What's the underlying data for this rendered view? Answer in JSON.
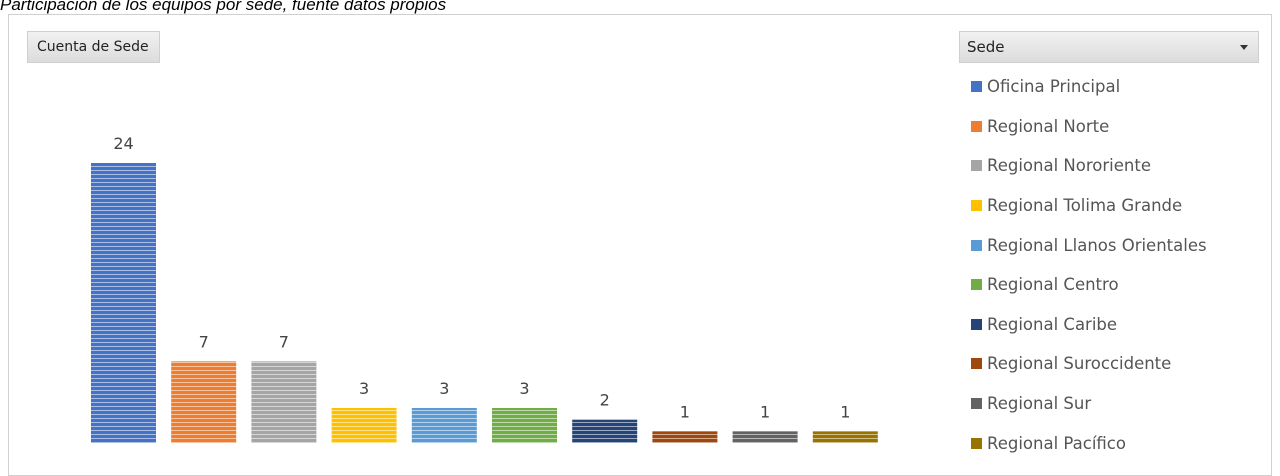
{
  "caption": "Participación de los equipos por sede, fuente datos propios",
  "pivot": {
    "value_field": "Cuenta de Sede",
    "legend_field": "Sede"
  },
  "chart_data": {
    "type": "bar",
    "title": "",
    "xlabel": "",
    "ylabel": "",
    "ylim": [
      0,
      24
    ],
    "grid": false,
    "legend_position": "right",
    "data_labels": true,
    "series": [
      {
        "name": "Oficina Principal",
        "value": 24,
        "color": "#4472c4"
      },
      {
        "name": "Regional Norte",
        "value": 7,
        "color": "#ed7d31"
      },
      {
        "name": "Regional Nororiente",
        "value": 7,
        "color": "#a5a5a5"
      },
      {
        "name": "Regional Tolima Grande",
        "value": 3,
        "color": "#ffc000"
      },
      {
        "name": "Regional Llanos Orientales",
        "value": 3,
        "color": "#5b9bd5"
      },
      {
        "name": "Regional Centro",
        "value": 3,
        "color": "#70ad47"
      },
      {
        "name": "Regional Caribe",
        "value": 2,
        "color": "#264478"
      },
      {
        "name": "Regional Suroccidente",
        "value": 1,
        "color": "#9e480e"
      },
      {
        "name": "Regional Sur",
        "value": 1,
        "color": "#636363"
      },
      {
        "name": "Regional Pacífico",
        "value": 1,
        "color": "#997300"
      }
    ]
  }
}
